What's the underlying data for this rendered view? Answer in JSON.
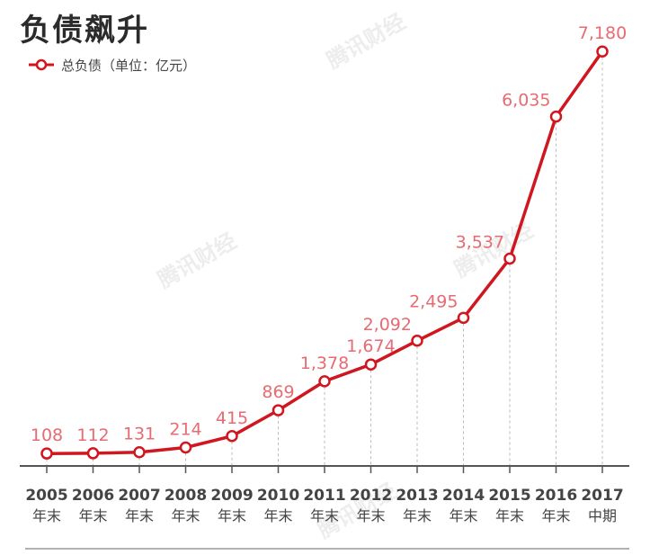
{
  "header": {
    "title": "负债飙升"
  },
  "watermark": {
    "text": "腾讯财经"
  },
  "colors": {
    "line": "#d0161f",
    "value_label": "#e76b72",
    "axis": "#555555",
    "grid": "#bbbbbb"
  },
  "chart_data": {
    "type": "line",
    "title": "负债飙升",
    "xlabel": "",
    "ylabel": "",
    "categories": [
      "2005",
      "2006",
      "2007",
      "2008",
      "2009",
      "2010",
      "2011",
      "2012",
      "2013",
      "2014",
      "2015",
      "2016",
      "2017"
    ],
    "category_sublabels": [
      "年末",
      "年末",
      "年末",
      "年末",
      "年末",
      "年末",
      "年末",
      "年末",
      "年末",
      "年末",
      "年末",
      "年末",
      "中期"
    ],
    "series": [
      {
        "name": "总负债（单位：亿元）",
        "values": [
          108,
          112,
          131,
          214,
          415,
          869,
          1378,
          1674,
          2092,
          2495,
          3537,
          6035,
          7180
        ],
        "value_labels": [
          "108",
          "112",
          "131",
          "214",
          "415",
          "869",
          "1,378",
          "1,674",
          "2,092",
          "2,495",
          "3,537",
          "6,035",
          "7,180"
        ]
      }
    ],
    "ylim": [
      0,
      7500
    ],
    "grid": "vertical dashed drop lines",
    "legend_position": "top-left"
  }
}
